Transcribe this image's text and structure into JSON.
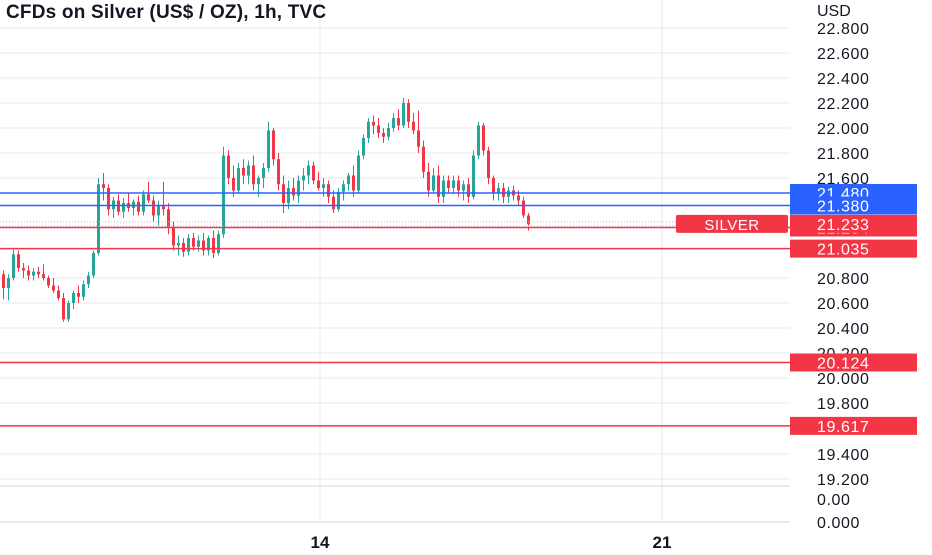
{
  "chart_data": {
    "type": "candlestick",
    "title": "CFDs on Silver (US$ / OZ), 1h, TVC",
    "currency_label": "USD",
    "y_tick_labels": [
      "22.800",
      "22.600",
      "22.400",
      "22.200",
      "22.000",
      "21.800",
      "21.600",
      "20.800",
      "20.600",
      "20.400",
      "20.200",
      "20.000",
      "19.800",
      "19.400",
      "19.200"
    ],
    "y_tick_values": [
      22.8,
      22.6,
      22.4,
      22.2,
      22.0,
      21.8,
      21.6,
      20.8,
      20.6,
      20.4,
      20.2,
      20.0,
      19.8,
      19.4,
      19.2
    ],
    "x_tick_labels": [
      "14",
      "21"
    ],
    "volume_tick_labels": [
      "0.00",
      "0.000"
    ],
    "ylim": [
      19.2,
      22.8
    ],
    "grid": true,
    "colors": {
      "up": "#26a69a",
      "down": "#f23645",
      "support_line": "#f23645",
      "resistance_line": "#2962ff",
      "grid": "#e6e9ef",
      "axis_text": "#131722"
    },
    "horizontal_levels": [
      {
        "label": "21.480",
        "value": 21.48,
        "color": "#2962ff"
      },
      {
        "label": "21.380",
        "value": 21.38,
        "color": "#2962ff"
      },
      {
        "label": "21.204",
        "value": 21.204,
        "color": "#f23645"
      },
      {
        "label": "21.035",
        "value": 21.035,
        "color": "#f23645"
      },
      {
        "label": "20.124",
        "value": 20.124,
        "color": "#f23645"
      },
      {
        "label": "19.617",
        "value": 19.617,
        "color": "#f23645"
      }
    ],
    "last_price": {
      "symbol": "SILVER",
      "label": "21.233",
      "value": 21.233
    },
    "candles": [
      [
        20.83,
        20.86,
        20.63,
        20.72
      ],
      [
        20.72,
        20.83,
        20.62,
        20.8
      ],
      [
        20.8,
        21.03,
        20.78,
        20.99
      ],
      [
        20.99,
        21.02,
        20.85,
        20.88
      ],
      [
        20.88,
        20.92,
        20.8,
        20.86
      ],
      [
        20.86,
        20.9,
        20.78,
        20.82
      ],
      [
        20.82,
        20.88,
        20.78,
        20.85
      ],
      [
        20.85,
        20.89,
        20.8,
        20.83
      ],
      [
        20.83,
        20.91,
        20.78,
        20.8
      ],
      [
        20.8,
        20.82,
        20.72,
        20.74
      ],
      [
        20.74,
        20.8,
        20.68,
        20.7
      ],
      [
        20.7,
        20.74,
        20.62,
        20.64
      ],
      [
        20.64,
        20.68,
        20.45,
        20.47
      ],
      [
        20.47,
        20.62,
        20.45,
        20.6
      ],
      [
        20.6,
        20.7,
        20.55,
        20.68
      ],
      [
        20.68,
        20.74,
        20.6,
        20.65
      ],
      [
        20.65,
        20.78,
        20.62,
        20.75
      ],
      [
        20.75,
        20.85,
        20.72,
        20.82
      ],
      [
        20.82,
        21.02,
        20.8,
        21.0
      ],
      [
        21.0,
        21.6,
        20.98,
        21.55
      ],
      [
        21.55,
        21.64,
        21.42,
        21.52
      ],
      [
        21.52,
        21.55,
        21.3,
        21.35
      ],
      [
        21.35,
        21.45,
        21.28,
        21.42
      ],
      [
        21.42,
        21.47,
        21.3,
        21.33
      ],
      [
        21.33,
        21.44,
        21.28,
        21.4
      ],
      [
        21.4,
        21.48,
        21.33,
        21.36
      ],
      [
        21.36,
        21.43,
        21.3,
        21.41
      ],
      [
        21.41,
        21.46,
        21.3,
        21.33
      ],
      [
        21.33,
        21.5,
        21.3,
        21.47
      ],
      [
        21.47,
        21.57,
        21.4,
        21.42
      ],
      [
        21.42,
        21.46,
        21.25,
        21.3
      ],
      [
        21.3,
        21.42,
        21.22,
        21.38
      ],
      [
        21.38,
        21.57,
        21.3,
        21.35
      ],
      [
        21.35,
        21.4,
        21.15,
        21.2
      ],
      [
        21.2,
        21.25,
        21.02,
        21.06
      ],
      [
        21.06,
        21.14,
        20.98,
        21.08
      ],
      [
        21.08,
        21.12,
        20.97,
        21.01
      ],
      [
        21.01,
        21.15,
        20.98,
        21.12
      ],
      [
        21.12,
        21.16,
        21.02,
        21.05
      ],
      [
        21.05,
        21.14,
        21.01,
        21.1
      ],
      [
        21.1,
        21.16,
        20.98,
        21.02
      ],
      [
        21.02,
        21.14,
        20.98,
        21.12
      ],
      [
        21.12,
        21.18,
        20.96,
        21.0
      ],
      [
        21.0,
        21.18,
        20.98,
        21.15
      ],
      [
        21.15,
        21.85,
        21.12,
        21.78
      ],
      [
        21.78,
        21.82,
        21.55,
        21.6
      ],
      [
        21.6,
        21.7,
        21.45,
        21.5
      ],
      [
        21.5,
        21.72,
        21.48,
        21.68
      ],
      [
        21.68,
        21.75,
        21.55,
        21.62
      ],
      [
        21.62,
        21.74,
        21.55,
        21.7
      ],
      [
        21.7,
        21.78,
        21.5,
        21.55
      ],
      [
        21.55,
        21.62,
        21.45,
        21.6
      ],
      [
        21.6,
        21.72,
        21.52,
        21.68
      ],
      [
        21.68,
        22.05,
        21.65,
        21.98
      ],
      [
        21.98,
        22.0,
        21.7,
        21.75
      ],
      [
        21.75,
        21.8,
        21.5,
        21.55
      ],
      [
        21.55,
        21.62,
        21.32,
        21.4
      ],
      [
        21.4,
        21.58,
        21.35,
        21.52
      ],
      [
        21.52,
        21.6,
        21.42,
        21.46
      ],
      [
        21.46,
        21.62,
        21.4,
        21.58
      ],
      [
        21.58,
        21.68,
        21.5,
        21.62
      ],
      [
        21.62,
        21.74,
        21.55,
        21.7
      ],
      [
        21.7,
        21.73,
        21.55,
        21.58
      ],
      [
        21.58,
        21.65,
        21.5,
        21.52
      ],
      [
        21.52,
        21.6,
        21.45,
        21.55
      ],
      [
        21.55,
        21.58,
        21.4,
        21.45
      ],
      [
        21.45,
        21.5,
        21.32,
        21.35
      ],
      [
        21.35,
        21.52,
        21.33,
        21.49
      ],
      [
        21.49,
        21.58,
        21.42,
        21.55
      ],
      [
        21.55,
        21.64,
        21.5,
        21.62
      ],
      [
        21.62,
        21.7,
        21.45,
        21.5
      ],
      [
        21.5,
        21.82,
        21.48,
        21.78
      ],
      [
        21.78,
        21.95,
        21.75,
        21.92
      ],
      [
        21.92,
        22.08,
        21.88,
        22.05
      ],
      [
        22.05,
        22.1,
        21.95,
        22.02
      ],
      [
        22.02,
        22.08,
        21.92,
        21.96
      ],
      [
        21.96,
        22.0,
        21.88,
        21.93
      ],
      [
        21.93,
        22.04,
        21.9,
        22.0
      ],
      [
        22.0,
        22.12,
        21.97,
        22.08
      ],
      [
        22.08,
        22.15,
        21.98,
        22.02
      ],
      [
        22.02,
        22.24,
        22.0,
        22.2
      ],
      [
        22.2,
        22.23,
        22.0,
        22.05
      ],
      [
        22.05,
        22.12,
        21.95,
        21.98
      ],
      [
        21.98,
        22.14,
        21.8,
        21.85
      ],
      [
        21.85,
        21.9,
        21.6,
        21.65
      ],
      [
        21.65,
        21.72,
        21.45,
        21.5
      ],
      [
        21.5,
        21.68,
        21.48,
        21.62
      ],
      [
        21.62,
        21.7,
        21.4,
        21.45
      ],
      [
        21.45,
        21.62,
        21.4,
        21.58
      ],
      [
        21.58,
        21.62,
        21.48,
        21.52
      ],
      [
        21.52,
        21.62,
        21.48,
        21.58
      ],
      [
        21.58,
        21.62,
        21.45,
        21.5
      ],
      [
        21.5,
        21.58,
        21.42,
        21.55
      ],
      [
        21.55,
        21.6,
        21.4,
        21.45
      ],
      [
        21.45,
        21.82,
        21.43,
        21.78
      ],
      [
        21.78,
        22.05,
        21.75,
        22.02
      ],
      [
        22.02,
        22.04,
        21.78,
        21.82
      ],
      [
        21.82,
        21.85,
        21.55,
        21.6
      ],
      [
        21.6,
        21.62,
        21.42,
        21.48
      ],
      [
        21.48,
        21.56,
        21.42,
        21.52
      ],
      [
        21.52,
        21.56,
        21.4,
        21.45
      ],
      [
        21.45,
        21.53,
        21.4,
        21.5
      ],
      [
        21.5,
        21.54,
        21.42,
        21.46
      ],
      [
        21.46,
        21.5,
        21.38,
        21.42
      ],
      [
        21.42,
        21.45,
        21.28,
        21.3
      ],
      [
        21.3,
        21.32,
        21.18,
        21.23
      ]
    ]
  }
}
